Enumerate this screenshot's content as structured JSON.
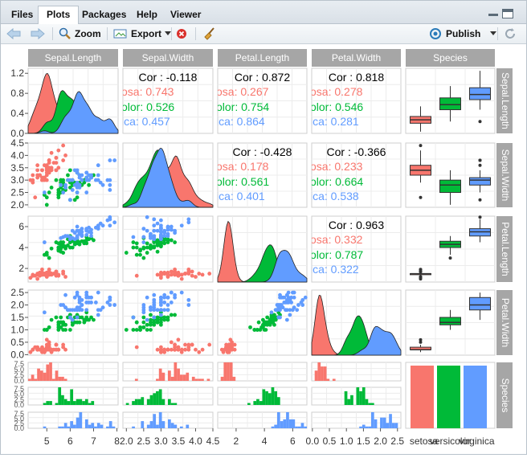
{
  "tabs": [
    {
      "label": "Files"
    },
    {
      "label": "Plots"
    },
    {
      "label": "Packages"
    },
    {
      "label": "Help"
    },
    {
      "label": "Viewer"
    }
  ],
  "toolbar": {
    "zoom_label": "Zoom",
    "export_label": "Export",
    "publish_label": "Publish"
  },
  "icons": {
    "back": "arrow-left-icon",
    "forward": "arrow-right-icon",
    "zoom": "magnifier-icon",
    "export": "export-image-icon",
    "clear": "remove-icon",
    "broom": "broom-icon",
    "publish": "publish-icon",
    "refresh": "refresh-icon",
    "minimize": "minimize-icon",
    "maximize": "maximize-icon"
  },
  "colors": {
    "setosa": "#F8766D",
    "versicolor": "#00BA38",
    "virginica": "#619CFF",
    "strip": "#a6a6a6"
  },
  "chart_data": {
    "type": "scatter",
    "variables": [
      "Sepal.Length",
      "Sepal.Width",
      "Petal.Length",
      "Petal.Width",
      "Species"
    ],
    "species": [
      "setosa",
      "versicolor",
      "virginica"
    ],
    "correlations": [
      {
        "pair": "Sepal.Length-Sepal.Width",
        "label": "Cor : -0.118",
        "groups": [
          "osa: 0.743",
          "olor: 0.526",
          "ica: 0.457"
        ]
      },
      {
        "pair": "Sepal.Length-Petal.Length",
        "label": "Cor : 0.872",
        "groups": [
          "osa: 0.267",
          "olor: 0.754",
          "ica: 0.864"
        ]
      },
      {
        "pair": "Sepal.Length-Petal.Width",
        "label": "Cor : 0.818",
        "groups": [
          "osa: 0.278",
          "olor: 0.546",
          "ica: 0.281"
        ]
      },
      {
        "pair": "Sepal.Width-Petal.Length",
        "label": "Cor : -0.428",
        "groups": [
          "osa: 0.178",
          "olor: 0.561",
          "ica: 0.401"
        ]
      },
      {
        "pair": "Sepal.Width-Petal.Width",
        "label": "Cor : -0.366",
        "groups": [
          "osa: 0.233",
          "olor: 0.664",
          "ica: 0.538"
        ]
      },
      {
        "pair": "Petal.Length-Petal.Width",
        "label": "Cor : 0.963",
        "groups": [
          "osa: 0.332",
          "olor: 0.787",
          "ica: 0.322"
        ]
      }
    ],
    "y_ticks": {
      "Sepal.Length": [
        "1.2",
        "0.8",
        "0.4",
        "0.0"
      ],
      "Sepal.Width": [
        "4.5",
        "4.0",
        "3.5",
        "3.0",
        "2.5",
        "2.0"
      ],
      "Petal.Length": [
        "6",
        "4",
        "2"
      ],
      "Petal.Width": [
        "2.5",
        "2.0",
        "1.5",
        "1.0",
        "0.5",
        "0.0"
      ],
      "Species": [
        "7.5",
        "5.0",
        "2.5",
        "0.0"
      ]
    },
    "x_ticks": {
      "Sepal.Length": [
        "5",
        "6",
        "7",
        "8"
      ],
      "Sepal.Width": [
        "2.0",
        "2.5",
        "3.0",
        "3.5",
        "4.0",
        "4.5"
      ],
      "Petal.Length": [
        "2",
        "4",
        "6"
      ],
      "Petal.Width": [
        "0.0",
        "0.5",
        "1.0",
        "1.5",
        "2.0",
        "2.5"
      ],
      "Species": [
        "setosa",
        "versicolor",
        "virginica"
      ]
    },
    "points": {
      "Sepal.Length": [
        5.1,
        4.9,
        4.7,
        4.6,
        5.0,
        5.4,
        4.6,
        5.0,
        4.4,
        4.9,
        5.4,
        4.8,
        4.8,
        4.3,
        5.8,
        5.7,
        5.4,
        5.1,
        5.7,
        5.1,
        5.4,
        5.1,
        4.6,
        5.1,
        4.8,
        5.0,
        5.0,
        5.2,
        5.2,
        4.7,
        4.8,
        5.4,
        5.2,
        5.5,
        4.9,
        5.0,
        5.5,
        4.9,
        4.4,
        5.1,
        5.0,
        4.5,
        4.4,
        5.0,
        5.1,
        4.8,
        5.1,
        4.6,
        5.3,
        5.0,
        7.0,
        6.4,
        6.9,
        5.5,
        6.5,
        5.7,
        6.3,
        4.9,
        6.6,
        5.2,
        5.0,
        5.9,
        6.0,
        6.1,
        5.6,
        6.7,
        5.6,
        5.8,
        6.2,
        5.6,
        5.9,
        6.1,
        6.3,
        6.1,
        6.4,
        6.6,
        6.8,
        6.7,
        6.0,
        5.7,
        5.5,
        5.5,
        5.8,
        6.0,
        5.4,
        6.0,
        6.7,
        6.3,
        5.6,
        5.5,
        5.5,
        6.1,
        5.8,
        5.0,
        5.6,
        5.7,
        5.7,
        6.2,
        5.1,
        5.7,
        6.3,
        5.8,
        7.1,
        6.3,
        6.5,
        7.6,
        4.9,
        7.3,
        6.7,
        7.2,
        6.5,
        6.4,
        6.8,
        5.7,
        5.8,
        6.4,
        6.5,
        7.7,
        7.7,
        6.0,
        6.9,
        5.6,
        7.7,
        6.3,
        6.7,
        7.2,
        6.2,
        6.1,
        6.4,
        7.2,
        7.4,
        7.9,
        6.4,
        6.3,
        6.1,
        7.7,
        6.3,
        6.4,
        6.0,
        6.9,
        6.7,
        6.9,
        5.8,
        6.8,
        6.7,
        6.7,
        6.3,
        6.5,
        6.2,
        5.9
      ],
      "Sepal.Width": [
        3.5,
        3.0,
        3.2,
        3.1,
        3.6,
        3.9,
        3.4,
        3.4,
        2.9,
        3.1,
        3.7,
        3.4,
        3.0,
        3.0,
        4.0,
        4.4,
        3.9,
        3.5,
        3.8,
        3.8,
        3.4,
        3.7,
        3.6,
        3.3,
        3.4,
        3.0,
        3.4,
        3.5,
        3.4,
        3.2,
        3.1,
        3.4,
        4.1,
        4.2,
        3.1,
        3.2,
        3.5,
        3.6,
        3.0,
        3.4,
        3.5,
        2.3,
        3.2,
        3.5,
        3.8,
        3.0,
        3.8,
        3.2,
        3.7,
        3.3,
        3.2,
        3.2,
        3.1,
        2.3,
        2.8,
        2.8,
        3.3,
        2.4,
        2.9,
        2.7,
        2.0,
        3.0,
        2.2,
        2.9,
        2.9,
        3.1,
        3.0,
        2.7,
        2.2,
        2.5,
        3.2,
        2.8,
        2.5,
        2.8,
        2.9,
        3.0,
        2.8,
        3.0,
        2.9,
        2.6,
        2.4,
        2.4,
        2.7,
        2.7,
        3.0,
        3.4,
        3.1,
        2.3,
        3.0,
        2.5,
        2.6,
        3.0,
        2.6,
        2.3,
        2.7,
        3.0,
        2.9,
        2.9,
        2.5,
        2.8,
        3.3,
        2.7,
        3.0,
        2.9,
        3.0,
        3.0,
        2.5,
        2.9,
        2.5,
        3.6,
        3.2,
        2.7,
        3.0,
        2.5,
        2.8,
        3.2,
        3.0,
        3.8,
        2.6,
        2.2,
        3.2,
        2.8,
        2.8,
        2.7,
        3.3,
        3.2,
        2.8,
        3.0,
        2.8,
        3.0,
        2.8,
        3.8,
        2.8,
        2.8,
        2.6,
        3.0,
        3.4,
        3.1,
        3.0,
        3.1,
        3.1,
        3.1,
        2.7,
        3.2,
        3.3,
        3.0,
        2.5,
        3.0,
        3.4,
        3.0
      ],
      "Petal.Length": [
        1.4,
        1.4,
        1.3,
        1.5,
        1.4,
        1.7,
        1.4,
        1.5,
        1.4,
        1.5,
        1.5,
        1.6,
        1.4,
        1.1,
        1.2,
        1.5,
        1.3,
        1.4,
        1.7,
        1.5,
        1.7,
        1.5,
        1.0,
        1.7,
        1.9,
        1.6,
        1.6,
        1.5,
        1.4,
        1.6,
        1.6,
        1.5,
        1.5,
        1.4,
        1.5,
        1.2,
        1.3,
        1.4,
        1.3,
        1.5,
        1.3,
        1.3,
        1.3,
        1.6,
        1.9,
        1.4,
        1.6,
        1.4,
        1.5,
        1.4,
        4.7,
        4.5,
        4.9,
        4.0,
        4.6,
        4.5,
        4.7,
        3.3,
        4.6,
        3.9,
        3.5,
        4.2,
        4.0,
        4.7,
        3.6,
        4.4,
        4.5,
        4.1,
        4.5,
        3.9,
        4.8,
        4.0,
        4.9,
        4.7,
        4.3,
        4.4,
        4.8,
        5.0,
        4.5,
        3.5,
        3.8,
        3.7,
        3.9,
        5.1,
        4.5,
        4.5,
        4.7,
        4.4,
        4.1,
        4.0,
        4.4,
        4.6,
        4.0,
        3.3,
        4.2,
        4.2,
        4.2,
        4.3,
        3.0,
        4.1,
        6.0,
        5.1,
        5.9,
        5.6,
        5.8,
        6.6,
        4.5,
        6.3,
        5.8,
        6.1,
        5.1,
        5.3,
        5.5,
        5.0,
        5.1,
        5.3,
        5.5,
        6.7,
        6.9,
        5.0,
        5.7,
        4.9,
        6.7,
        4.9,
        5.7,
        6.0,
        4.8,
        4.9,
        5.6,
        5.8,
        6.1,
        6.4,
        5.6,
        5.1,
        5.6,
        6.1,
        5.6,
        5.5,
        4.8,
        5.4,
        5.6,
        5.1,
        5.1,
        5.9,
        5.7,
        5.2,
        5.0,
        5.2,
        5.4,
        5.1
      ],
      "Petal.Width": [
        0.2,
        0.2,
        0.2,
        0.2,
        0.2,
        0.4,
        0.3,
        0.2,
        0.2,
        0.1,
        0.2,
        0.2,
        0.1,
        0.1,
        0.2,
        0.4,
        0.4,
        0.3,
        0.3,
        0.3,
        0.2,
        0.4,
        0.2,
        0.5,
        0.2,
        0.2,
        0.4,
        0.2,
        0.2,
        0.2,
        0.2,
        0.4,
        0.1,
        0.2,
        0.2,
        0.2,
        0.2,
        0.1,
        0.2,
        0.2,
        0.3,
        0.3,
        0.2,
        0.6,
        0.4,
        0.3,
        0.2,
        0.2,
        0.2,
        0.2,
        1.4,
        1.5,
        1.5,
        1.3,
        1.5,
        1.3,
        1.6,
        1.0,
        1.3,
        1.4,
        1.0,
        1.5,
        1.0,
        1.4,
        1.3,
        1.4,
        1.5,
        1.0,
        1.5,
        1.1,
        1.8,
        1.3,
        1.5,
        1.2,
        1.3,
        1.4,
        1.4,
        1.7,
        1.5,
        1.0,
        1.1,
        1.0,
        1.2,
        1.6,
        1.5,
        1.6,
        1.5,
        1.3,
        1.3,
        1.3,
        1.2,
        1.4,
        1.2,
        1.0,
        1.3,
        1.2,
        1.3,
        1.3,
        1.1,
        1.3,
        2.5,
        1.9,
        2.1,
        1.8,
        2.2,
        2.1,
        1.7,
        1.8,
        1.8,
        2.5,
        2.0,
        1.9,
        2.1,
        2.0,
        2.4,
        2.3,
        1.8,
        2.2,
        2.3,
        1.5,
        2.3,
        2.0,
        2.0,
        1.8,
        2.1,
        1.8,
        1.8,
        1.8,
        2.1,
        1.6,
        1.9,
        2.0,
        2.2,
        1.5,
        1.4,
        2.3,
        2.4,
        1.8,
        1.8,
        2.1,
        2.4,
        2.3,
        1.9,
        2.3,
        2.5,
        2.3,
        1.9,
        2.0,
        2.3,
        1.8
      ]
    }
  }
}
